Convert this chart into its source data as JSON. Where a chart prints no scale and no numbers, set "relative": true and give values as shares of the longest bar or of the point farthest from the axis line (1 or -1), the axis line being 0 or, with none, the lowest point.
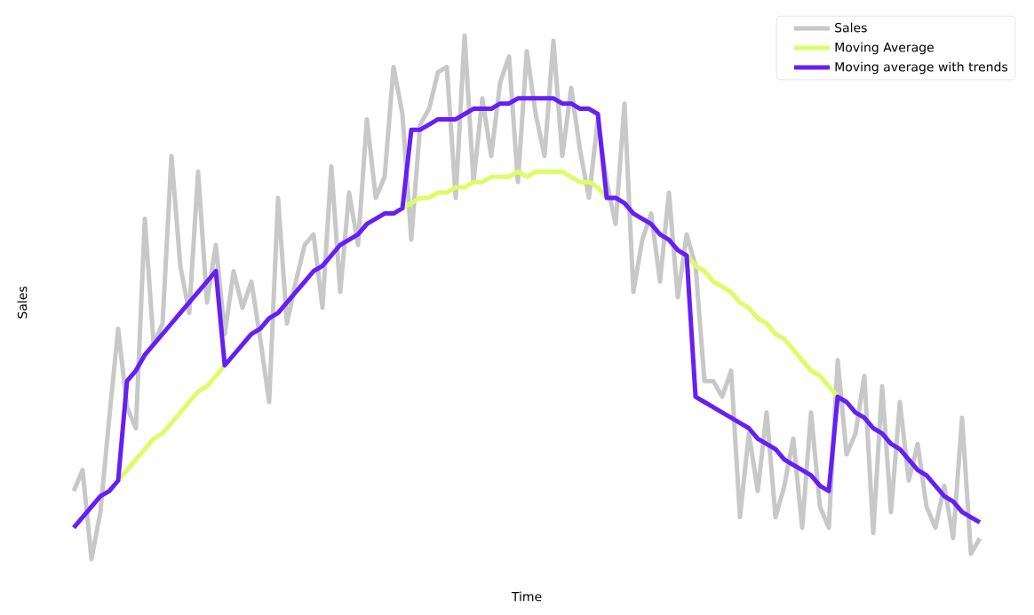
{
  "chart_data": {
    "type": "line",
    "xlabel": "Time",
    "ylabel": "Sales",
    "relative": true,
    "legend": "top right",
    "line_style": "solid",
    "categories": [
      null,
      null,
      null,
      null,
      null,
      null,
      null,
      null,
      null,
      null,
      null,
      null,
      null,
      null,
      null,
      null,
      null,
      null,
      null,
      null,
      null,
      null,
      null,
      null,
      null,
      null,
      null,
      null,
      null,
      null,
      null,
      null,
      null,
      null,
      null,
      null,
      null,
      null,
      null,
      null,
      null,
      null,
      null,
      null,
      null,
      null,
      null,
      null,
      null,
      null,
      null,
      null,
      null,
      null,
      null,
      null,
      null,
      null,
      null,
      null,
      null,
      null,
      null,
      null,
      null,
      null,
      null,
      null,
      null,
      null,
      null,
      null,
      null,
      null,
      null,
      null,
      null,
      null,
      null,
      null,
      null,
      null,
      null,
      null,
      null,
      null,
      null,
      null,
      null,
      null,
      null,
      null,
      null,
      null,
      null,
      null,
      null,
      null,
      null,
      null,
      null,
      null,
      null
    ],
    "series": [
      {
        "name": "Sales",
        "color": "#c8c8c8",
        "values": [
          0.13,
          0.17,
          0,
          0.09,
          0.27,
          0.44,
          0.29,
          0.25,
          0.65,
          0.41,
          0.45,
          0.77,
          0.56,
          0.47,
          0.74,
          0.49,
          0.6,
          0.43,
          0.55,
          0.48,
          0.53,
          0.42,
          0.3,
          0.69,
          0.45,
          0.53,
          0.6,
          0.62,
          0.48,
          0.75,
          0.51,
          0.7,
          0.6,
          0.84,
          0.69,
          0.73,
          0.94,
          0.85,
          0.61,
          0.83,
          0.86,
          0.93,
          0.94,
          0.69,
          1.0,
          0.72,
          0.88,
          0.77,
          0.91,
          0.96,
          0.72,
          0.97,
          0.85,
          0.77,
          0.99,
          0.77,
          0.9,
          0.78,
          0.69,
          0.84,
          0.72,
          0.64,
          0.87,
          0.51,
          0.61,
          0.66,
          0.53,
          0.7,
          0.5,
          0.62,
          0.56,
          0.34,
          0.34,
          0.31,
          0.36,
          0.08,
          0.24,
          0.13,
          0.28,
          0.08,
          0.14,
          0.23,
          0.06,
          0.28,
          0.1,
          0.06,
          0.38,
          0.2,
          0.24,
          0.35,
          0.05,
          0.33,
          0.09,
          0.3,
          0.15,
          0.22,
          0.1,
          0.06,
          0.14,
          0.04,
          0.27,
          0.01,
          0.04
        ]
      },
      {
        "name": "Moving Average",
        "color": "#dbfe67",
        "values": [
          null,
          null,
          null,
          null,
          null,
          0.15,
          0.17,
          0.19,
          0.21,
          0.23,
          0.24,
          0.26,
          0.28,
          0.3,
          0.32,
          0.33,
          0.35,
          0.37,
          null,
          null,
          null,
          null,
          null,
          null,
          null,
          null,
          null,
          null,
          null,
          null,
          null,
          null,
          null,
          null,
          null,
          null,
          null,
          0.67,
          0.68,
          0.69,
          0.69,
          0.7,
          0.7,
          0.71,
          0.71,
          0.72,
          0.72,
          0.73,
          0.73,
          0.73,
          0.74,
          0.73,
          0.74,
          0.74,
          0.74,
          0.74,
          0.73,
          0.72,
          0.72,
          0.71,
          0.69,
          null,
          null,
          null,
          null,
          null,
          null,
          null,
          null,
          0.58,
          0.56,
          0.55,
          0.53,
          0.52,
          0.51,
          0.49,
          0.48,
          0.46,
          0.45,
          0.43,
          0.42,
          0.4,
          0.38,
          0.36,
          0.35,
          0.33,
          0.31,
          null,
          null,
          null,
          null,
          null,
          null,
          null,
          null,
          null,
          null,
          null,
          null,
          null,
          null,
          null,
          null
        ]
      },
      {
        "name": "Moving average with trends",
        "color": "#651ff6",
        "values": [
          0.06,
          0.08,
          0.1,
          0.12,
          0.13,
          0.15,
          0.34,
          0.36,
          0.39,
          0.41,
          0.43,
          0.45,
          0.47,
          0.49,
          0.51,
          0.53,
          0.55,
          0.37,
          0.39,
          0.41,
          0.43,
          0.44,
          0.46,
          0.47,
          0.49,
          0.51,
          0.53,
          0.55,
          0.56,
          0.58,
          0.6,
          0.61,
          0.62,
          0.64,
          0.65,
          0.66,
          0.66,
          0.67,
          0.82,
          0.82,
          0.83,
          0.84,
          0.84,
          0.84,
          0.85,
          0.86,
          0.86,
          0.86,
          0.87,
          0.87,
          0.88,
          0.88,
          0.88,
          0.88,
          0.88,
          0.87,
          0.87,
          0.86,
          0.86,
          0.85,
          0.69,
          0.69,
          0.68,
          0.66,
          0.65,
          0.64,
          0.62,
          0.61,
          0.59,
          0.58,
          0.31,
          0.3,
          0.29,
          0.28,
          0.27,
          0.26,
          0.25,
          0.23,
          0.22,
          0.21,
          0.19,
          0.18,
          0.17,
          0.16,
          0.14,
          0.13,
          0.31,
          0.3,
          0.28,
          0.27,
          0.25,
          0.24,
          0.22,
          0.21,
          0.19,
          0.17,
          0.16,
          0.14,
          0.12,
          0.11,
          0.09,
          0.08,
          0.07
        ]
      }
    ]
  }
}
